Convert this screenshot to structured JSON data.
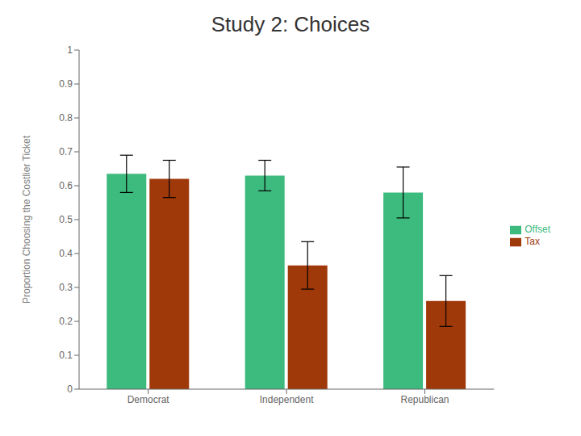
{
  "chart_data": {
    "type": "bar",
    "title": "Study 2: Choices",
    "y_label": "Proportion Choosing the Costlier Ticket",
    "categories": [
      "Democrat",
      "Independent",
      "Republican"
    ],
    "series": [
      {
        "name": "Offset",
        "color": "#3DBA7E",
        "values": [
          0.635,
          0.63,
          0.58
        ],
        "errors": [
          0.055,
          0.045,
          0.075
        ]
      },
      {
        "name": "Tax",
        "color": "#A0390A",
        "values": [
          0.62,
          0.365,
          0.26
        ],
        "errors": [
          0.055,
          0.07,
          0.075
        ]
      }
    ],
    "ylim": [
      0,
      1.0
    ],
    "yticks": [
      0,
      0.1,
      0.2,
      0.3,
      0.4,
      0.5,
      0.6,
      0.7,
      0.8,
      0.9,
      1
    ],
    "legend": "right",
    "grid": false
  }
}
